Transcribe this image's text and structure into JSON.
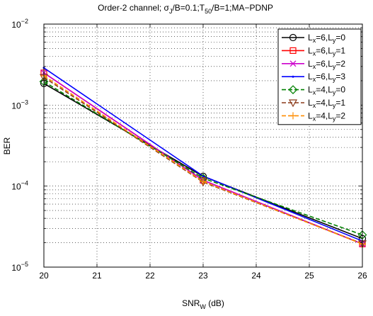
{
  "chart_data": {
    "type": "line",
    "title": {
      "pre": "Order-2 channel; σ",
      "sub1": "J",
      "mid1": "/B=0.1;T",
      "sub2": "50",
      "post": "/B=1;MA−PDNP"
    },
    "xlabel": {
      "main": "SNR",
      "sub": "W",
      "post": " (dB)"
    },
    "ylabel": "BER",
    "xlim": [
      20,
      26
    ],
    "ylim": [
      1e-05,
      0.01
    ],
    "yscale": "log",
    "grid": true,
    "x_ticks": [
      "20",
      "21",
      "22",
      "23",
      "24",
      "25",
      "26"
    ],
    "y_ticks": [
      {
        "base": "10",
        "exp": "−2",
        "value": 0.01
      },
      {
        "base": "10",
        "exp": "−3",
        "value": 0.001
      },
      {
        "base": "10",
        "exp": "−4",
        "value": 0.0001
      },
      {
        "base": "10",
        "exp": "−5",
        "value": 1e-05
      }
    ],
    "legend_position": "top-right",
    "x": [
      20,
      23,
      26
    ],
    "series": [
      {
        "name": "Lx=6,Ly=0",
        "label": {
          "a": "L",
          "as": "x",
          "b": "=6,L",
          "bs": "y",
          "c": "=0"
        },
        "values": [
          0.00185,
          0.000132,
          2.25e-05
        ],
        "color": "#000000",
        "dash": "solid",
        "marker": "circle"
      },
      {
        "name": "Lx=6,Ly=1",
        "label": {
          "a": "L",
          "as": "x",
          "b": "=6,L",
          "bs": "y",
          "c": "=1"
        },
        "values": [
          0.0025,
          0.000118,
          1.93e-05
        ],
        "color": "#ff0000",
        "dash": "solid",
        "marker": "square"
      },
      {
        "name": "Lx=6,Ly=2",
        "label": {
          "a": "L",
          "as": "x",
          "b": "=6,L",
          "bs": "y",
          "c": "=2"
        },
        "values": [
          0.0025,
          0.000118,
          1.93e-05
        ],
        "color": "#cc00cc",
        "dash": "solid",
        "marker": "x"
      },
      {
        "name": "Lx=6,Ly=3",
        "label": {
          "a": "L",
          "as": "x",
          "b": "=6,L",
          "bs": "y",
          "c": "=3"
        },
        "values": [
          0.00288,
          0.000133,
          2.1e-05
        ],
        "color": "#0000ff",
        "dash": "solid",
        "marker": "point"
      },
      {
        "name": "Lx=4,Ly=0",
        "label": {
          "a": "L",
          "as": "x",
          "b": "=4,L",
          "bs": "y",
          "c": "=0"
        },
        "values": [
          0.00195,
          0.000125,
          2.5e-05
        ],
        "color": "#008000",
        "dash": "dashed",
        "marker": "diamond"
      },
      {
        "name": "Lx=4,Ly=1",
        "label": {
          "a": "L",
          "as": "x",
          "b": "=4,L",
          "bs": "y",
          "c": "=1"
        },
        "values": [
          0.0022,
          0.000112,
          1.95e-05
        ],
        "color": "#8b3a1a",
        "dash": "dashed",
        "marker": "triangle-down"
      },
      {
        "name": "Lx=4,Ly=2",
        "label": {
          "a": "L",
          "as": "x",
          "b": "=4,L",
          "bs": "y",
          "c": "=2"
        },
        "values": [
          0.0023,
          0.000114,
          1.93e-05
        ],
        "color": "#ff8c00",
        "dash": "dashed",
        "marker": "plus"
      }
    ]
  }
}
